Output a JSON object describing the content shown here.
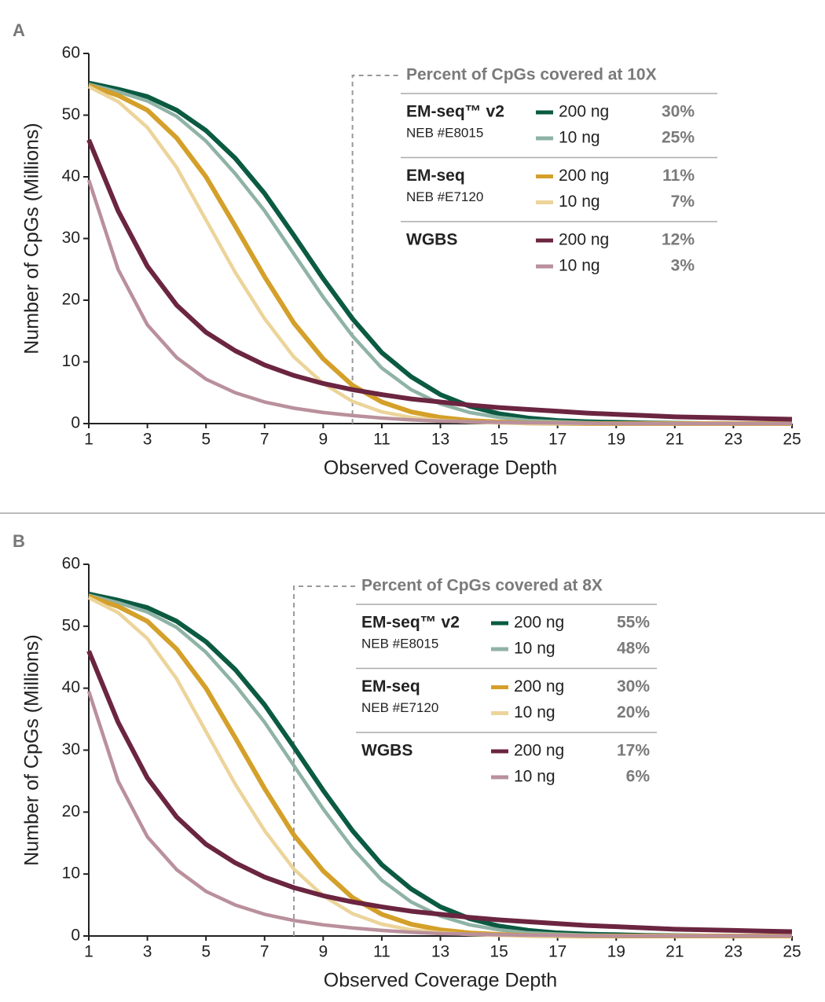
{
  "chart_data": [
    {
      "type": "line",
      "panel": "A",
      "xlabel": "Observed Coverage Depth",
      "ylabel": "Number of CpGs (Millions)",
      "legend_title": "Percent of CpGs covered at 10X",
      "threshold": 10,
      "x": [
        1,
        2,
        3,
        4,
        5,
        6,
        7,
        8,
        9,
        10,
        11,
        12,
        13,
        14,
        15,
        16,
        17,
        18,
        19,
        20,
        21,
        22,
        23,
        24,
        25
      ],
      "xlim": [
        1,
        25
      ],
      "ylim": [
        0,
        60
      ],
      "xticks": [
        1,
        3,
        5,
        7,
        9,
        11,
        13,
        15,
        17,
        19,
        21,
        23,
        25
      ],
      "yticks": [
        0,
        10,
        20,
        30,
        40,
        50,
        60
      ],
      "groups": [
        {
          "name": "EM-seq™ v2",
          "catalog": "NEB #E8015",
          "color": "#0b5a42",
          "series": [
            {
              "name": "200 ng",
              "color": "#0b5a42",
              "coverage": "30%",
              "values": [
                55.2,
                54.2,
                53,
                50.8,
                47.5,
                43,
                37.3,
                30.5,
                23.5,
                17,
                11.5,
                7.6,
                4.7,
                2.8,
                1.6,
                0.9,
                0.5,
                0.3,
                0.2,
                0.1,
                0.05,
                0,
                0,
                0,
                0
              ]
            },
            {
              "name": "10 ng",
              "color": "#8fb3a5",
              "coverage": "25%",
              "values": [
                55,
                53.8,
                52.3,
                49.8,
                45.8,
                40.5,
                34.5,
                27.5,
                20.5,
                14.2,
                9,
                5.5,
                3.2,
                1.8,
                1,
                0.5,
                0.3,
                0.15,
                0.1,
                0.05,
                0,
                0,
                0,
                0,
                0
              ]
            }
          ]
        },
        {
          "name": "EM-seq",
          "catalog": "NEB #E7120",
          "color": "#d4a02a",
          "series": [
            {
              "name": "200 ng",
              "color": "#d4a02a",
              "coverage": "11%",
              "values": [
                54.8,
                53.2,
                50.8,
                46.3,
                40,
                32,
                23.8,
                16.3,
                10.5,
                6.2,
                3.5,
                1.9,
                1,
                0.5,
                0.25,
                0.1,
                0.05,
                0,
                0,
                0,
                0,
                0,
                0,
                0,
                0
              ]
            },
            {
              "name": "10 ng",
              "color": "#ecd49a",
              "coverage": "7%",
              "values": [
                54.6,
                52.2,
                48,
                41.5,
                33,
                24.5,
                17,
                10.8,
                6.5,
                3.6,
                1.9,
                1,
                0.5,
                0.25,
                0.1,
                0.05,
                0,
                0,
                0,
                0,
                0,
                0,
                0,
                0,
                0
              ]
            }
          ]
        },
        {
          "name": "WGBS",
          "catalog": null,
          "color": "#6b2540",
          "series": [
            {
              "name": "200 ng",
              "color": "#6b2540",
              "coverage": "12%",
              "values": [
                46,
                34.5,
                25.5,
                19.2,
                14.8,
                11.8,
                9.5,
                7.8,
                6.5,
                5.5,
                4.7,
                4,
                3.5,
                3,
                2.6,
                2.3,
                2,
                1.7,
                1.5,
                1.3,
                1.1,
                1,
                0.9,
                0.8,
                0.7
              ]
            },
            {
              "name": "10 ng",
              "color": "#b9909c",
              "coverage": "3%",
              "values": [
                39.5,
                25,
                16,
                10.7,
                7.2,
                5,
                3.5,
                2.5,
                1.8,
                1.3,
                0.9,
                0.6,
                0.4,
                0.3,
                0.2,
                0.15,
                0.1,
                0.05,
                0,
                0,
                0,
                0,
                0,
                0,
                0
              ]
            }
          ]
        }
      ]
    },
    {
      "type": "line",
      "panel": "B",
      "xlabel": "Observed Coverage Depth",
      "ylabel": "Number of CpGs (Millions)",
      "legend_title": "Percent of CpGs covered at 8X",
      "threshold": 8,
      "x": [
        1,
        2,
        3,
        4,
        5,
        6,
        7,
        8,
        9,
        10,
        11,
        12,
        13,
        14,
        15,
        16,
        17,
        18,
        19,
        20,
        21,
        22,
        23,
        24,
        25
      ],
      "xlim": [
        1,
        25
      ],
      "ylim": [
        0,
        60
      ],
      "xticks": [
        1,
        3,
        5,
        7,
        9,
        11,
        13,
        15,
        17,
        19,
        21,
        23,
        25
      ],
      "yticks": [
        0,
        10,
        20,
        30,
        40,
        50,
        60
      ],
      "groups": [
        {
          "name": "EM-seq™ v2",
          "catalog": "NEB #E8015",
          "color": "#0b5a42",
          "series": [
            {
              "name": "200 ng",
              "color": "#0b5a42",
              "coverage": "55%",
              "values": [
                55.2,
                54.2,
                53,
                50.8,
                47.5,
                43,
                37.3,
                30.5,
                23.5,
                17,
                11.5,
                7.6,
                4.7,
                2.8,
                1.6,
                0.9,
                0.5,
                0.3,
                0.2,
                0.1,
                0.05,
                0,
                0,
                0,
                0
              ]
            },
            {
              "name": "10 ng",
              "color": "#8fb3a5",
              "coverage": "48%",
              "values": [
                55,
                53.8,
                52.3,
                49.8,
                45.8,
                40.5,
                34.5,
                27.5,
                20.5,
                14.2,
                9,
                5.5,
                3.2,
                1.8,
                1,
                0.5,
                0.3,
                0.15,
                0.1,
                0.05,
                0,
                0,
                0,
                0,
                0
              ]
            }
          ]
        },
        {
          "name": "EM-seq",
          "catalog": "NEB #E7120",
          "color": "#d4a02a",
          "series": [
            {
              "name": "200 ng",
              "color": "#d4a02a",
              "coverage": "30%",
              "values": [
                54.8,
                53.2,
                50.8,
                46.3,
                40,
                32,
                23.8,
                16.3,
                10.5,
                6.2,
                3.5,
                1.9,
                1,
                0.5,
                0.25,
                0.1,
                0.05,
                0,
                0,
                0,
                0,
                0,
                0,
                0,
                0
              ]
            },
            {
              "name": "10 ng",
              "color": "#ecd49a",
              "coverage": "20%",
              "values": [
                54.6,
                52.2,
                48,
                41.5,
                33,
                24.5,
                17,
                10.8,
                6.5,
                3.6,
                1.9,
                1,
                0.5,
                0.25,
                0.1,
                0.05,
                0,
                0,
                0,
                0,
                0,
                0,
                0,
                0,
                0
              ]
            }
          ]
        },
        {
          "name": "WGBS",
          "catalog": null,
          "color": "#6b2540",
          "series": [
            {
              "name": "200 ng",
              "color": "#6b2540",
              "coverage": "17%",
              "values": [
                46,
                34.5,
                25.5,
                19.2,
                14.8,
                11.8,
                9.5,
                7.8,
                6.5,
                5.5,
                4.7,
                4,
                3.5,
                3,
                2.6,
                2.3,
                2,
                1.7,
                1.5,
                1.3,
                1.1,
                1,
                0.9,
                0.8,
                0.7
              ]
            },
            {
              "name": "10 ng",
              "color": "#b9909c",
              "coverage": "6%",
              "values": [
                39.5,
                25,
                16,
                10.7,
                7.2,
                5,
                3.5,
                2.5,
                1.8,
                1.3,
                0.9,
                0.6,
                0.4,
                0.3,
                0.2,
                0.15,
                0.1,
                0.05,
                0,
                0,
                0,
                0,
                0,
                0,
                0
              ]
            }
          ]
        }
      ]
    }
  ]
}
